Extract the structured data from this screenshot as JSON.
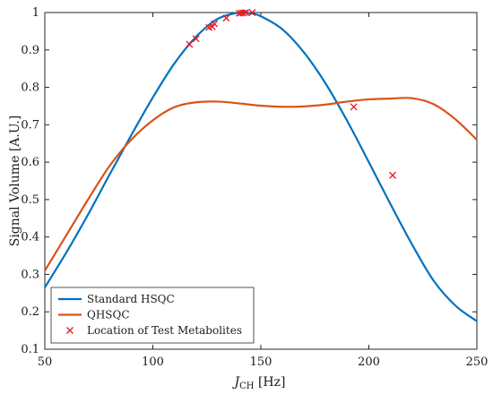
{
  "chart_data": {
    "type": "line",
    "xlabel_main": "J",
    "xlabel_sub": "CH",
    "xlabel_unit": " [Hz]",
    "ylabel": "Signal Volume [A.U.]",
    "xlim": [
      50,
      250
    ],
    "ylim": [
      0.1,
      1
    ],
    "grid": false,
    "legend_placement": "bottom-left",
    "xticks": [
      "50",
      "100",
      "150",
      "200",
      "250"
    ],
    "yticks": [
      "0.1",
      "0.2",
      "0.3",
      "0.4",
      "0.5",
      "0.6",
      "0.7",
      "0.8",
      "0.9",
      "1"
    ],
    "series": [
      {
        "name": "Standard HSQC",
        "color": "#0072BD",
        "kind": "line",
        "x": [
          50,
          60,
          70,
          80,
          90,
          100,
          110,
          120,
          130,
          140,
          145,
          150,
          160,
          170,
          180,
          190,
          200,
          210,
          220,
          230,
          240,
          250
        ],
        "y": [
          0.265,
          0.359,
          0.46,
          0.567,
          0.672,
          0.773,
          0.864,
          0.935,
          0.983,
          1.0,
          0.998,
          0.99,
          0.955,
          0.893,
          0.81,
          0.71,
          0.6,
          0.488,
          0.38,
          0.283,
          0.217,
          0.175
        ]
      },
      {
        "name": "QHSQC",
        "color": "#D95319",
        "kind": "line",
        "x": [
          50,
          60,
          70,
          80,
          90,
          100,
          110,
          120,
          130,
          140,
          150,
          160,
          170,
          180,
          190,
          200,
          210,
          220,
          230,
          240,
          250
        ],
        "y": [
          0.31,
          0.405,
          0.5,
          0.59,
          0.66,
          0.712,
          0.747,
          0.76,
          0.762,
          0.757,
          0.751,
          0.748,
          0.749,
          0.754,
          0.762,
          0.768,
          0.77,
          0.771,
          0.755,
          0.715,
          0.66
        ]
      },
      {
        "name": "Location of Test Metabolites",
        "color": "#E8191F",
        "kind": "marker",
        "x": [
          117,
          120,
          126,
          127.5,
          128.5,
          134,
          140,
          141,
          142,
          143,
          146,
          193,
          211
        ],
        "y": [
          0.915,
          0.93,
          0.96,
          0.962,
          0.97,
          0.985,
          0.998,
          0.999,
          0.999,
          1.0,
          1.0,
          0.748,
          0.565
        ]
      }
    ]
  }
}
